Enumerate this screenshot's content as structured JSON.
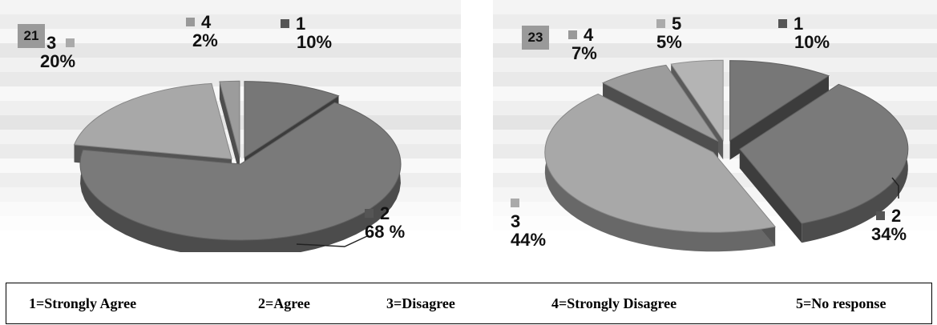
{
  "chart_data": [
    {
      "type": "pie",
      "badge": "21",
      "categories": [
        "1",
        "2",
        "3",
        "4"
      ],
      "values": [
        10,
        68,
        20,
        2
      ],
      "value_labels": [
        "10%",
        "68 %",
        "20%",
        "2%"
      ],
      "colors": [
        "#777777",
        "#7a7a7a",
        "#a8a8a8",
        "#9c9c9c"
      ],
      "exploded": [
        true,
        false,
        true,
        true
      ]
    },
    {
      "type": "pie",
      "badge": "23",
      "categories": [
        "1",
        "2",
        "3",
        "4",
        "5"
      ],
      "values": [
        10,
        34,
        44,
        7,
        5
      ],
      "value_labels": [
        "10%",
        "34%",
        "44%",
        "7%",
        "5%"
      ],
      "colors": [
        "#777777",
        "#7a7a7a",
        "#a8a8a8",
        "#9c9c9c",
        "#b4b4b4"
      ],
      "exploded": [
        true,
        true,
        true,
        true,
        true
      ]
    }
  ],
  "legend": [
    {
      "code": "1=Strongly Agree"
    },
    {
      "code": "2=Agree"
    },
    {
      "code": "3=Disagree"
    },
    {
      "code": "4=Strongly Disagree"
    },
    {
      "code": "5=No response"
    }
  ]
}
